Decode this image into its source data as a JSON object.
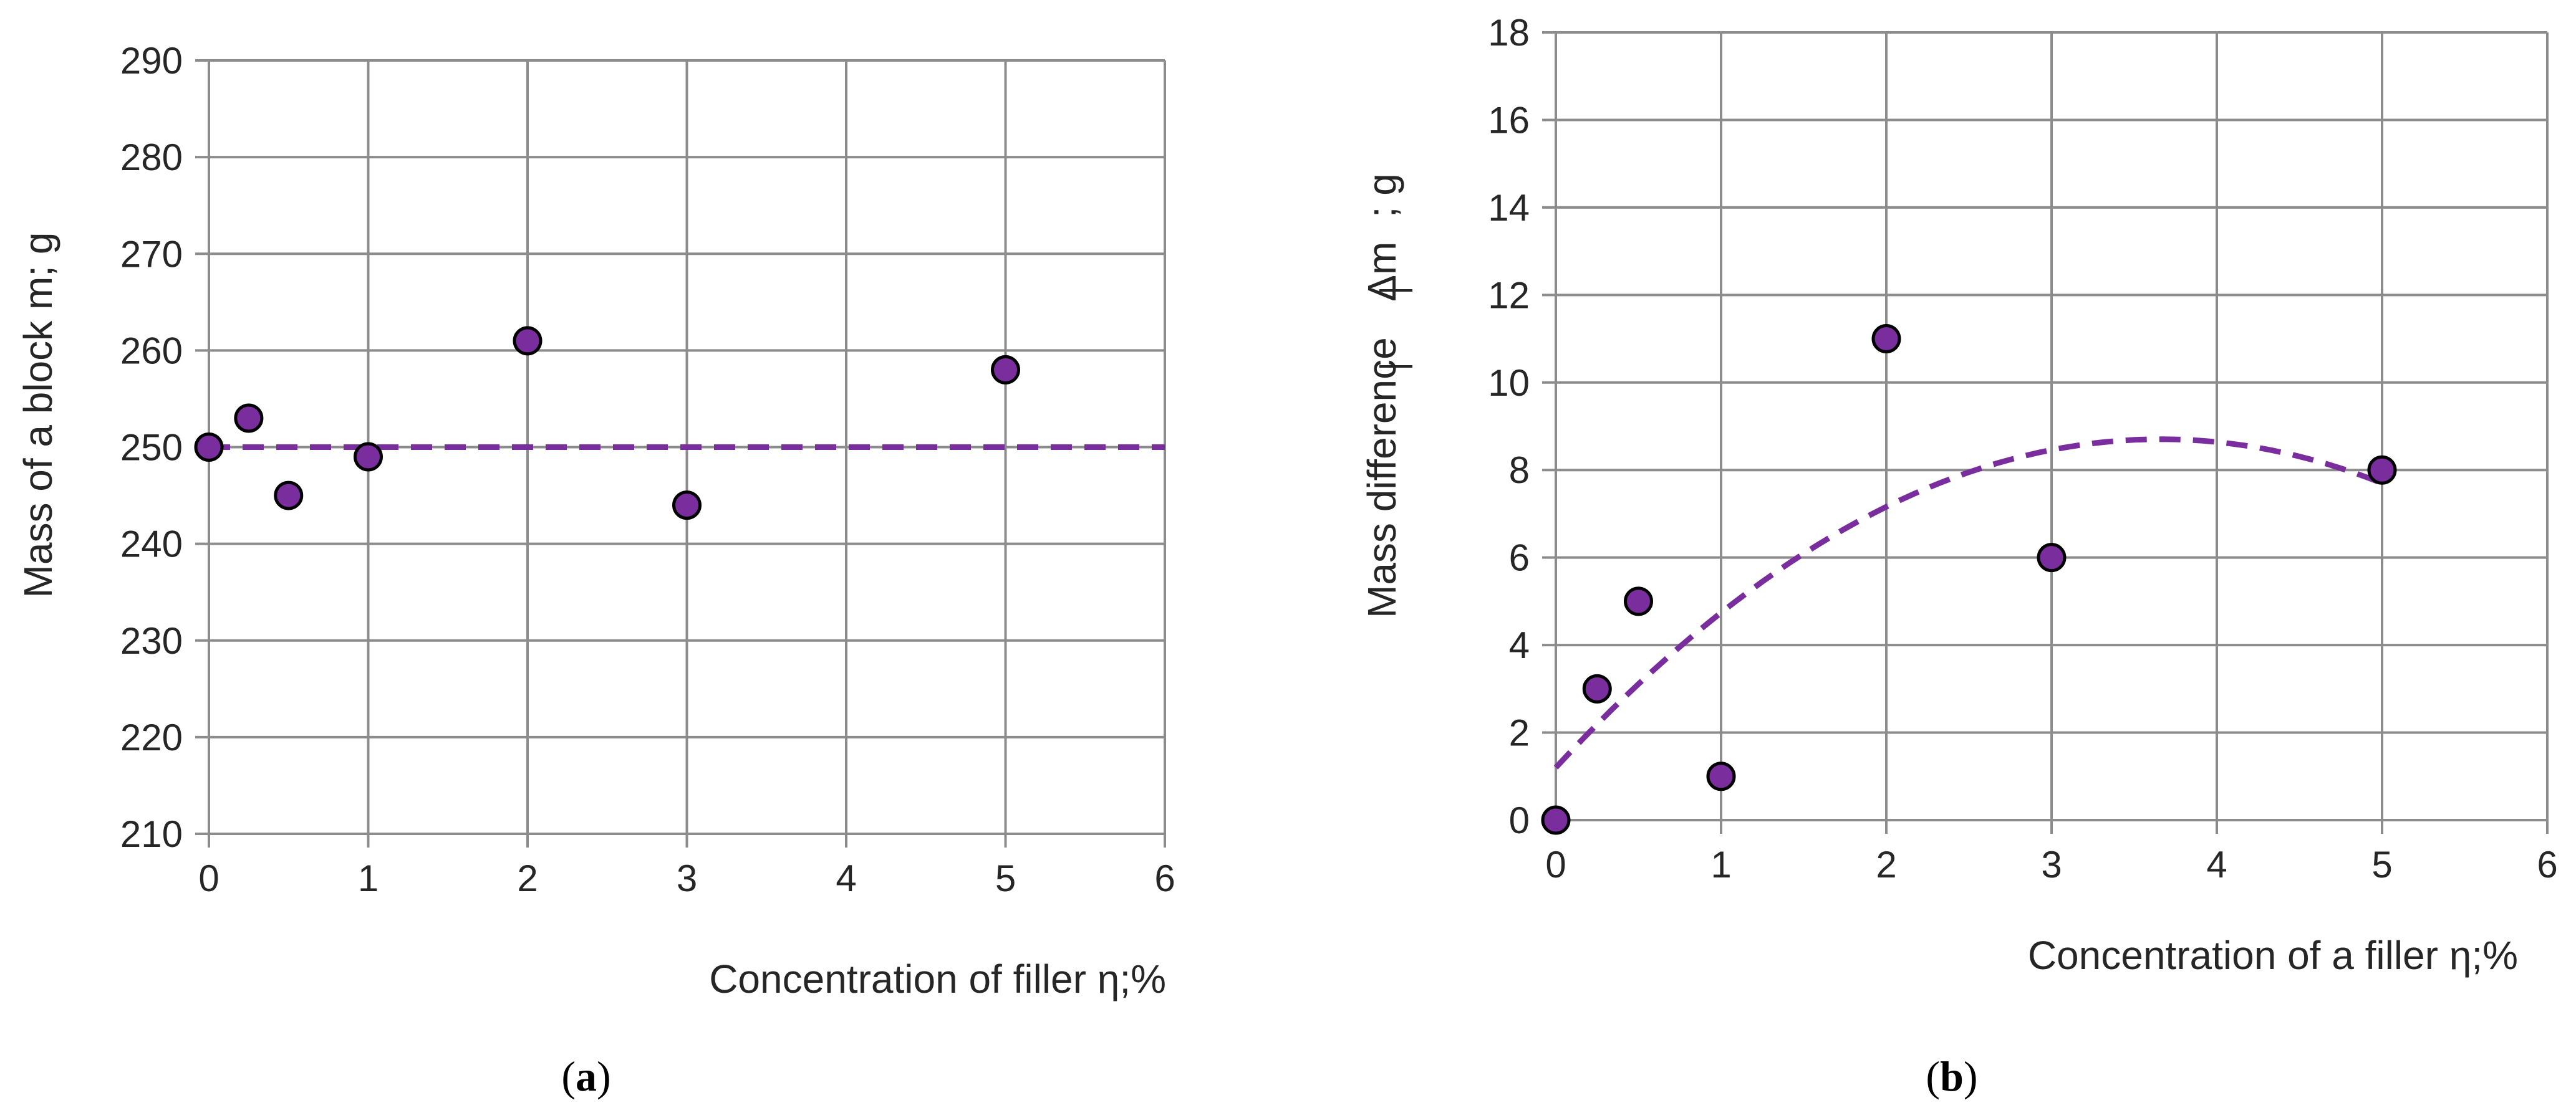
{
  "panels": [
    {
      "caption_open": "(",
      "caption_letter": "a",
      "caption_close": ")"
    },
    {
      "caption_open": "(",
      "caption_letter": "b",
      "caption_close": ")"
    }
  ],
  "colors": {
    "marker_fill": "#7a2e9e",
    "marker_stroke": "#000000",
    "trend": "#7a2e9e",
    "grid": "#8c8c8c",
    "text": "#262626"
  },
  "chart_data": [
    {
      "type": "scatter",
      "xlabel": "Concentration of filler η;%",
      "ylabel": "Mass of a block m; g",
      "xlim": [
        0,
        6
      ],
      "ylim": [
        210,
        290
      ],
      "x_ticks": [
        0,
        1,
        2,
        3,
        4,
        5,
        6
      ],
      "y_ticks": [
        210,
        220,
        230,
        240,
        250,
        260,
        270,
        280,
        290
      ],
      "grid": true,
      "legend": "none",
      "series": [
        {
          "x": [
            0,
            0.25,
            0.5,
            1,
            2,
            3,
            5
          ],
          "y": [
            250,
            253,
            245,
            249,
            261,
            244,
            258
          ]
        }
      ],
      "trendline": {
        "style": "dashed",
        "kind": "constant",
        "value": 250,
        "x_range": [
          0,
          6
        ]
      }
    },
    {
      "type": "scatter",
      "xlabel": "Concentration of a filler η;%",
      "ylabel_pre": "Mass difference",
      "ylabel_delta": "Δm",
      "ylabel_post": "; g",
      "xlim": [
        0,
        6
      ],
      "ylim": [
        0,
        18
      ],
      "x_ticks": [
        0,
        1,
        2,
        3,
        4,
        5,
        6
      ],
      "y_ticks": [
        0,
        2,
        4,
        6,
        8,
        10,
        12,
        14,
        16,
        18
      ],
      "grid": true,
      "legend": "none",
      "series": [
        {
          "x": [
            0,
            0.25,
            0.5,
            1,
            2,
            3,
            5
          ],
          "y": [
            0,
            3,
            5,
            1,
            11,
            6,
            8
          ]
        }
      ],
      "trendline": {
        "style": "dashed",
        "kind": "quadratic",
        "coefficients": [
          1.2,
          4.1,
          -0.56
        ],
        "x_range": [
          0,
          5
        ]
      }
    }
  ]
}
